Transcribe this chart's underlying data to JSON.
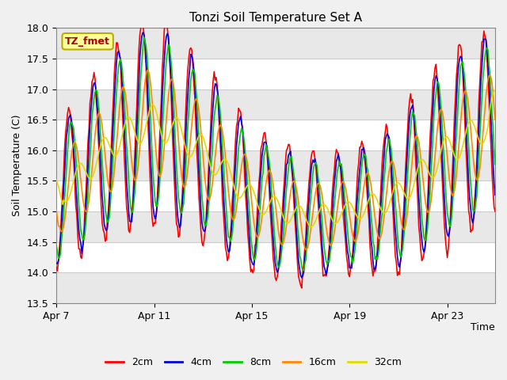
{
  "title": "Tonzi Soil Temperature Set A",
  "xlabel": "Time",
  "ylabel": "Soil Temperature (C)",
  "ylim": [
    13.5,
    18.0
  ],
  "yticks": [
    13.5,
    14.0,
    14.5,
    15.0,
    15.5,
    16.0,
    16.5,
    17.0,
    17.5,
    18.0
  ],
  "xtick_labels": [
    "Apr 7",
    "Apr 11",
    "Apr 15",
    "Apr 19",
    "Apr 23"
  ],
  "xtick_positions": [
    0,
    96,
    192,
    288,
    384
  ],
  "colors": {
    "2cm": "#ff0000",
    "4cm": "#0000dd",
    "8cm": "#00cc00",
    "16cm": "#ff8800",
    "32cm": "#dddd00"
  },
  "legend_label": "TZ_fmet",
  "legend_bg": "#ffff99",
  "legend_border": "#bbaa00",
  "bg_color": "#ffffff",
  "plot_bg": "#ffffff",
  "n_points": 432,
  "base_mean": 15.5
}
